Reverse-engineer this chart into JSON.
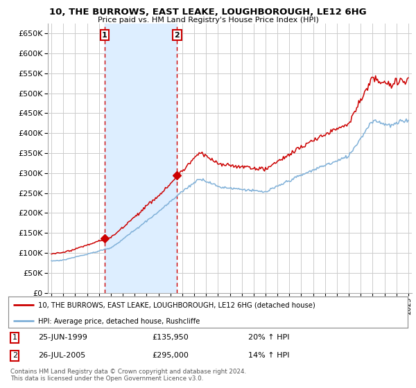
{
  "title": "10, THE BURROWS, EAST LEAKE, LOUGHBOROUGH, LE12 6HG",
  "subtitle": "Price paid vs. HM Land Registry's House Price Index (HPI)",
  "ylim": [
    0,
    675000
  ],
  "yticks": [
    0,
    50000,
    100000,
    150000,
    200000,
    250000,
    300000,
    350000,
    400000,
    450000,
    500000,
    550000,
    600000,
    650000
  ],
  "xlim_start": 1994.7,
  "xlim_end": 2025.3,
  "red_color": "#cc0000",
  "blue_color": "#7fb0d8",
  "shade_color": "#ddeeff",
  "sale1_price": 135950,
  "sale1_year": 1999.48,
  "sale2_price": 295000,
  "sale2_year": 2005.56,
  "legend_line1": "10, THE BURROWS, EAST LEAKE, LOUGHBOROUGH, LE12 6HG (detached house)",
  "legend_line2": "HPI: Average price, detached house, Rushcliffe",
  "footer": "Contains HM Land Registry data © Crown copyright and database right 2024.\nThis data is licensed under the Open Government Licence v3.0.",
  "table_rows": [
    {
      "num": "1",
      "date": "25-JUN-1999",
      "price": "£135,950",
      "pct": "20% ↑ HPI"
    },
    {
      "num": "2",
      "date": "26-JUL-2005",
      "price": "£295,000",
      "pct": "14% ↑ HPI"
    }
  ],
  "bg_color": "#ffffff",
  "grid_color": "#cccccc"
}
